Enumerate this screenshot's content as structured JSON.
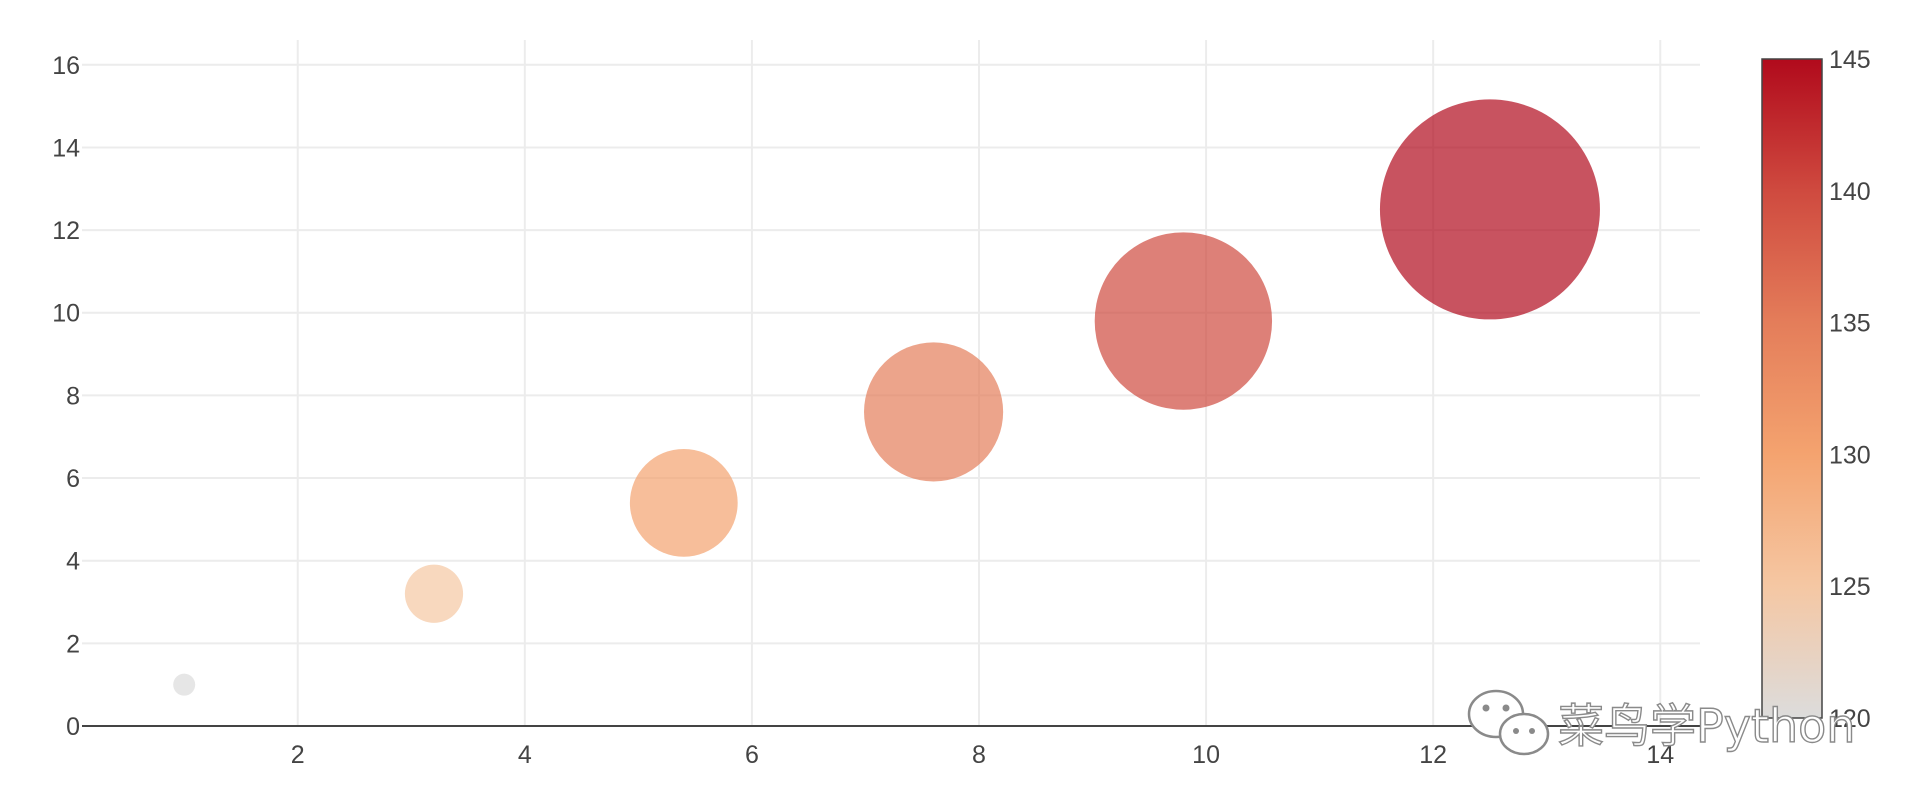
{
  "chart_data": {
    "type": "scatter",
    "title": "",
    "xlabel": "",
    "ylabel": "",
    "xlim": [
      0.1,
      14.35
    ],
    "ylim": [
      0,
      16.6
    ],
    "x_ticks": [
      2,
      4,
      6,
      8,
      10,
      12,
      14
    ],
    "y_ticks": [
      0,
      2,
      4,
      6,
      8,
      10,
      12,
      14,
      16
    ],
    "grid": true,
    "series": [
      {
        "points": [
          {
            "x": 1.0,
            "y": 1.0,
            "size": 0.01,
            "color": 120
          },
          {
            "x": 3.2,
            "y": 3.2,
            "size": 0.07,
            "color": 125
          },
          {
            "x": 5.4,
            "y": 5.4,
            "size": 0.24,
            "color": 130
          },
          {
            "x": 7.6,
            "y": 7.6,
            "size": 0.4,
            "color": 135
          },
          {
            "x": 9.8,
            "y": 9.8,
            "size": 0.65,
            "color": 140
          },
          {
            "x": 12.5,
            "y": 12.5,
            "size": 1.0,
            "color": 145
          }
        ]
      }
    ],
    "colorbar": {
      "min": 120,
      "max": 145,
      "ticks": [
        120,
        125,
        130,
        135,
        140,
        145
      ],
      "colorscale": [
        "#dcdcdc",
        "#f5c7a3",
        "#f4a36f",
        "#e47d5a",
        "#cf4a3f",
        "#b10a1c"
      ]
    },
    "marker_opacity": 0.7
  },
  "watermark": {
    "text": "菜鸟学Python",
    "icon": "wechat-icon"
  }
}
